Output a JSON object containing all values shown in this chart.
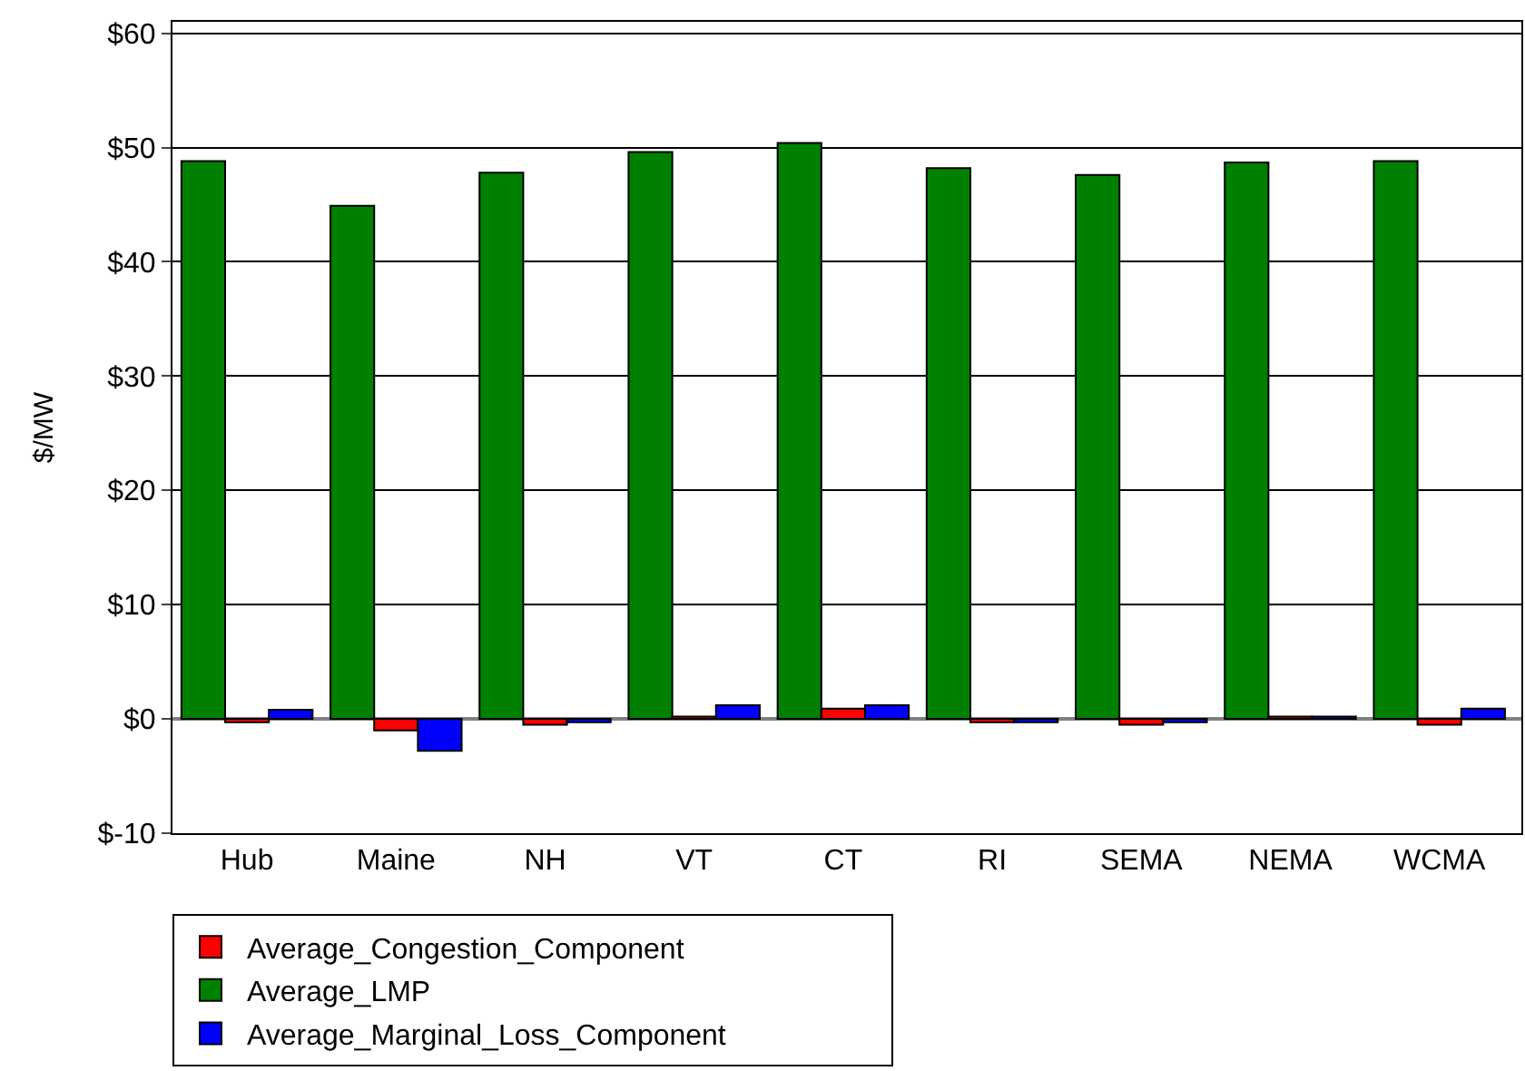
{
  "chart_data": {
    "type": "bar",
    "ylabel": "$/MW",
    "categories": [
      "Hub",
      "Maine",
      "NH",
      "VT",
      "CT",
      "RI",
      "SEMA",
      "NEMA",
      "WCMA"
    ],
    "series": [
      {
        "name": "Average_LMP",
        "color": "#008000",
        "values": [
          48.8,
          44.9,
          47.8,
          49.6,
          50.4,
          48.2,
          47.6,
          48.7,
          48.8
        ]
      },
      {
        "name": "Average_Congestion_Component",
        "color": "#ff0000",
        "values": [
          -0.3,
          -1.0,
          -0.5,
          0.2,
          0.9,
          -0.3,
          -0.5,
          0.2,
          -0.5
        ]
      },
      {
        "name": "Average_Marginal_Loss_Component",
        "color": "#0000ff",
        "values": [
          0.8,
          -2.8,
          -0.3,
          1.2,
          1.2,
          -0.3,
          -0.3,
          0.2,
          0.9
        ]
      }
    ],
    "ylim": [
      -10,
      61
    ],
    "yticks": [
      {
        "value": -10,
        "label": "$-10"
      },
      {
        "value": 0,
        "label": "$0"
      },
      {
        "value": 10,
        "label": "$10"
      },
      {
        "value": 20,
        "label": "$20"
      },
      {
        "value": 30,
        "label": "$30"
      },
      {
        "value": 40,
        "label": "$40"
      },
      {
        "value": 50,
        "label": "$50"
      },
      {
        "value": 60,
        "label": "$60"
      }
    ],
    "grid": "y",
    "legend": "bottom"
  }
}
